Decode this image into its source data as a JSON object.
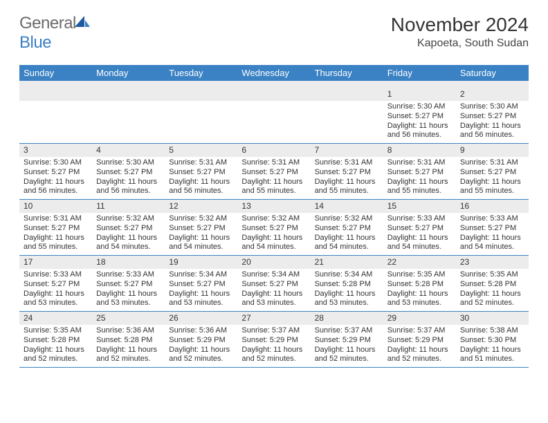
{
  "logo": {
    "general": "General",
    "blue": "Blue"
  },
  "title": {
    "month": "November 2024",
    "location": "Kapoeta, South Sudan"
  },
  "colors": {
    "header_bg": "#3b82c4",
    "header_text": "#ffffff",
    "daynum_bg": "#ececec",
    "border": "#3b82c4",
    "logo_gray": "#6b6b6b",
    "logo_blue": "#3b7fc4"
  },
  "weekdays": [
    "Sunday",
    "Monday",
    "Tuesday",
    "Wednesday",
    "Thursday",
    "Friday",
    "Saturday"
  ],
  "weeks": [
    [
      null,
      null,
      null,
      null,
      null,
      {
        "n": "1",
        "sunrise": "Sunrise: 5:30 AM",
        "sunset": "Sunset: 5:27 PM",
        "daylight": "Daylight: 11 hours and 56 minutes."
      },
      {
        "n": "2",
        "sunrise": "Sunrise: 5:30 AM",
        "sunset": "Sunset: 5:27 PM",
        "daylight": "Daylight: 11 hours and 56 minutes."
      }
    ],
    [
      {
        "n": "3",
        "sunrise": "Sunrise: 5:30 AM",
        "sunset": "Sunset: 5:27 PM",
        "daylight": "Daylight: 11 hours and 56 minutes."
      },
      {
        "n": "4",
        "sunrise": "Sunrise: 5:30 AM",
        "sunset": "Sunset: 5:27 PM",
        "daylight": "Daylight: 11 hours and 56 minutes."
      },
      {
        "n": "5",
        "sunrise": "Sunrise: 5:31 AM",
        "sunset": "Sunset: 5:27 PM",
        "daylight": "Daylight: 11 hours and 56 minutes."
      },
      {
        "n": "6",
        "sunrise": "Sunrise: 5:31 AM",
        "sunset": "Sunset: 5:27 PM",
        "daylight": "Daylight: 11 hours and 55 minutes."
      },
      {
        "n": "7",
        "sunrise": "Sunrise: 5:31 AM",
        "sunset": "Sunset: 5:27 PM",
        "daylight": "Daylight: 11 hours and 55 minutes."
      },
      {
        "n": "8",
        "sunrise": "Sunrise: 5:31 AM",
        "sunset": "Sunset: 5:27 PM",
        "daylight": "Daylight: 11 hours and 55 minutes."
      },
      {
        "n": "9",
        "sunrise": "Sunrise: 5:31 AM",
        "sunset": "Sunset: 5:27 PM",
        "daylight": "Daylight: 11 hours and 55 minutes."
      }
    ],
    [
      {
        "n": "10",
        "sunrise": "Sunrise: 5:31 AM",
        "sunset": "Sunset: 5:27 PM",
        "daylight": "Daylight: 11 hours and 55 minutes."
      },
      {
        "n": "11",
        "sunrise": "Sunrise: 5:32 AM",
        "sunset": "Sunset: 5:27 PM",
        "daylight": "Daylight: 11 hours and 54 minutes."
      },
      {
        "n": "12",
        "sunrise": "Sunrise: 5:32 AM",
        "sunset": "Sunset: 5:27 PM",
        "daylight": "Daylight: 11 hours and 54 minutes."
      },
      {
        "n": "13",
        "sunrise": "Sunrise: 5:32 AM",
        "sunset": "Sunset: 5:27 PM",
        "daylight": "Daylight: 11 hours and 54 minutes."
      },
      {
        "n": "14",
        "sunrise": "Sunrise: 5:32 AM",
        "sunset": "Sunset: 5:27 PM",
        "daylight": "Daylight: 11 hours and 54 minutes."
      },
      {
        "n": "15",
        "sunrise": "Sunrise: 5:33 AM",
        "sunset": "Sunset: 5:27 PM",
        "daylight": "Daylight: 11 hours and 54 minutes."
      },
      {
        "n": "16",
        "sunrise": "Sunrise: 5:33 AM",
        "sunset": "Sunset: 5:27 PM",
        "daylight": "Daylight: 11 hours and 54 minutes."
      }
    ],
    [
      {
        "n": "17",
        "sunrise": "Sunrise: 5:33 AM",
        "sunset": "Sunset: 5:27 PM",
        "daylight": "Daylight: 11 hours and 53 minutes."
      },
      {
        "n": "18",
        "sunrise": "Sunrise: 5:33 AM",
        "sunset": "Sunset: 5:27 PM",
        "daylight": "Daylight: 11 hours and 53 minutes."
      },
      {
        "n": "19",
        "sunrise": "Sunrise: 5:34 AM",
        "sunset": "Sunset: 5:27 PM",
        "daylight": "Daylight: 11 hours and 53 minutes."
      },
      {
        "n": "20",
        "sunrise": "Sunrise: 5:34 AM",
        "sunset": "Sunset: 5:27 PM",
        "daylight": "Daylight: 11 hours and 53 minutes."
      },
      {
        "n": "21",
        "sunrise": "Sunrise: 5:34 AM",
        "sunset": "Sunset: 5:28 PM",
        "daylight": "Daylight: 11 hours and 53 minutes."
      },
      {
        "n": "22",
        "sunrise": "Sunrise: 5:35 AM",
        "sunset": "Sunset: 5:28 PM",
        "daylight": "Daylight: 11 hours and 53 minutes."
      },
      {
        "n": "23",
        "sunrise": "Sunrise: 5:35 AM",
        "sunset": "Sunset: 5:28 PM",
        "daylight": "Daylight: 11 hours and 52 minutes."
      }
    ],
    [
      {
        "n": "24",
        "sunrise": "Sunrise: 5:35 AM",
        "sunset": "Sunset: 5:28 PM",
        "daylight": "Daylight: 11 hours and 52 minutes."
      },
      {
        "n": "25",
        "sunrise": "Sunrise: 5:36 AM",
        "sunset": "Sunset: 5:28 PM",
        "daylight": "Daylight: 11 hours and 52 minutes."
      },
      {
        "n": "26",
        "sunrise": "Sunrise: 5:36 AM",
        "sunset": "Sunset: 5:29 PM",
        "daylight": "Daylight: 11 hours and 52 minutes."
      },
      {
        "n": "27",
        "sunrise": "Sunrise: 5:37 AM",
        "sunset": "Sunset: 5:29 PM",
        "daylight": "Daylight: 11 hours and 52 minutes."
      },
      {
        "n": "28",
        "sunrise": "Sunrise: 5:37 AM",
        "sunset": "Sunset: 5:29 PM",
        "daylight": "Daylight: 11 hours and 52 minutes."
      },
      {
        "n": "29",
        "sunrise": "Sunrise: 5:37 AM",
        "sunset": "Sunset: 5:29 PM",
        "daylight": "Daylight: 11 hours and 52 minutes."
      },
      {
        "n": "30",
        "sunrise": "Sunrise: 5:38 AM",
        "sunset": "Sunset: 5:30 PM",
        "daylight": "Daylight: 11 hours and 51 minutes."
      }
    ]
  ]
}
